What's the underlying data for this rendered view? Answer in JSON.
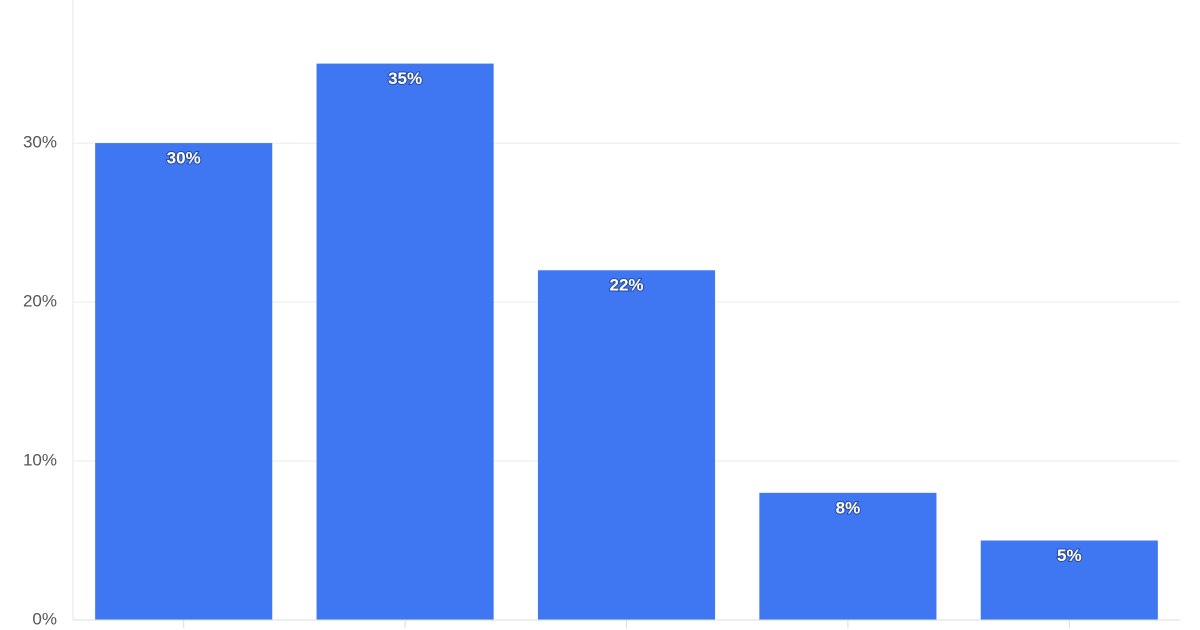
{
  "chart_data": {
    "type": "bar",
    "categories": [
      null,
      null,
      null,
      null,
      null
    ],
    "values": [
      30,
      35,
      22,
      8,
      5
    ],
    "value_labels": [
      "30%",
      "35%",
      "22%",
      "8%",
      "5%"
    ],
    "color": "#3f77f2",
    "ylim": [
      0,
      39
    ],
    "yticks": [
      {
        "value": 0,
        "label": "0%"
      },
      {
        "value": 10,
        "label": "10%"
      },
      {
        "value": 20,
        "label": "20%"
      },
      {
        "value": 30,
        "label": "30%"
      }
    ],
    "grid": true
  }
}
